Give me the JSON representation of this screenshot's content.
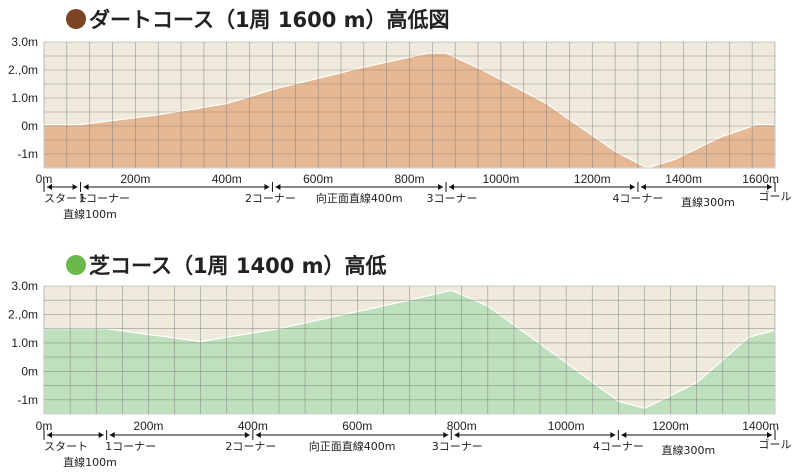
{
  "chart_data": [
    {
      "type": "area",
      "title": "ダートコース（1周 1600 m）高低図",
      "marker_color": "#7b4424",
      "fill_color": "#e6b894",
      "x_ticks": [
        0,
        200,
        400,
        600,
        800,
        1000,
        1200,
        1400,
        1600
      ],
      "x_tick_labels": [
        "0m",
        "200m",
        "400m",
        "600m",
        "800m",
        "1000m",
        "1200m",
        "1400m",
        "1600m"
      ],
      "y_ticks": [
        3,
        2,
        1,
        0,
        -1
      ],
      "y_tick_labels": [
        "3.0m",
        "2.,0m",
        "1.0m",
        "0m",
        "-1m"
      ],
      "xlim": [
        0,
        1600
      ],
      "ylim": [
        -1.5,
        3
      ],
      "x": [
        0,
        80,
        250,
        400,
        500,
        700,
        840,
        880,
        960,
        1100,
        1250,
        1320,
        1380,
        1480,
        1560,
        1600
      ],
      "y": [
        0.05,
        0.05,
        0.4,
        0.8,
        1.3,
        2.1,
        2.6,
        2.6,
        2.0,
        0.8,
        -0.9,
        -1.5,
        -1.2,
        -0.4,
        0.05,
        0.05
      ],
      "segments": [
        {
          "label": "スタート",
          "from": 0,
          "to": 80
        },
        {
          "label": "直線100m",
          "from": 0,
          "to": 80
        },
        {
          "label": "1コーナー",
          "from": 80,
          "to": 500
        },
        {
          "label": "2コーナー",
          "from": 500,
          "to": 880
        },
        {
          "label": "向正面直線400m",
          "from": 500,
          "to": 880
        },
        {
          "label": "3コーナー",
          "from": 880,
          "to": 1300
        },
        {
          "label": "4コーナー",
          "from": 1300,
          "to": 1600
        },
        {
          "label": "直線300m",
          "from": 1300,
          "to": 1600
        },
        {
          "label": "ゴール",
          "from": 1300,
          "to": 1600
        }
      ]
    },
    {
      "type": "area",
      "title": "芝コース（1周 1400 m）高低",
      "marker_color": "#6ab94a",
      "fill_color": "#bfe0bc",
      "x_ticks": [
        0,
        200,
        400,
        600,
        800,
        1000,
        1200,
        1400
      ],
      "x_tick_labels": [
        "0m",
        "200m",
        "400m",
        "600m",
        "800m",
        "1000m",
        "1200m",
        "1400m"
      ],
      "y_ticks": [
        3,
        2,
        1,
        0,
        -1
      ],
      "y_tick_labels": [
        "3.0m",
        "2.,0m",
        "1.0m",
        "0m",
        "-1m"
      ],
      "xlim": [
        0,
        1400
      ],
      "ylim": [
        -1.5,
        3
      ],
      "x": [
        0,
        120,
        300,
        450,
        600,
        700,
        780,
        850,
        1000,
        1100,
        1150,
        1250,
        1350,
        1400
      ],
      "y": [
        1.5,
        1.5,
        1.05,
        1.5,
        2.1,
        2.5,
        2.85,
        2.3,
        0.3,
        -1.05,
        -1.3,
        -0.4,
        1.2,
        1.45
      ],
      "segments": [
        {
          "label": "スタート",
          "from": 0,
          "to": 120
        },
        {
          "label": "直線100m",
          "from": 0,
          "to": 120
        },
        {
          "label": "1コーナー",
          "from": 120,
          "to": 400
        },
        {
          "label": "2コーナー",
          "from": 400,
          "to": 780
        },
        {
          "label": "向正面直線400m",
          "from": 400,
          "to": 780
        },
        {
          "label": "3コーナー",
          "from": 780,
          "to": 1100
        },
        {
          "label": "4コーナー",
          "from": 1100,
          "to": 1400
        },
        {
          "label": "直線300m",
          "from": 1100,
          "to": 1400
        },
        {
          "label": "ゴール",
          "from": 1100,
          "to": 1400
        }
      ]
    }
  ]
}
